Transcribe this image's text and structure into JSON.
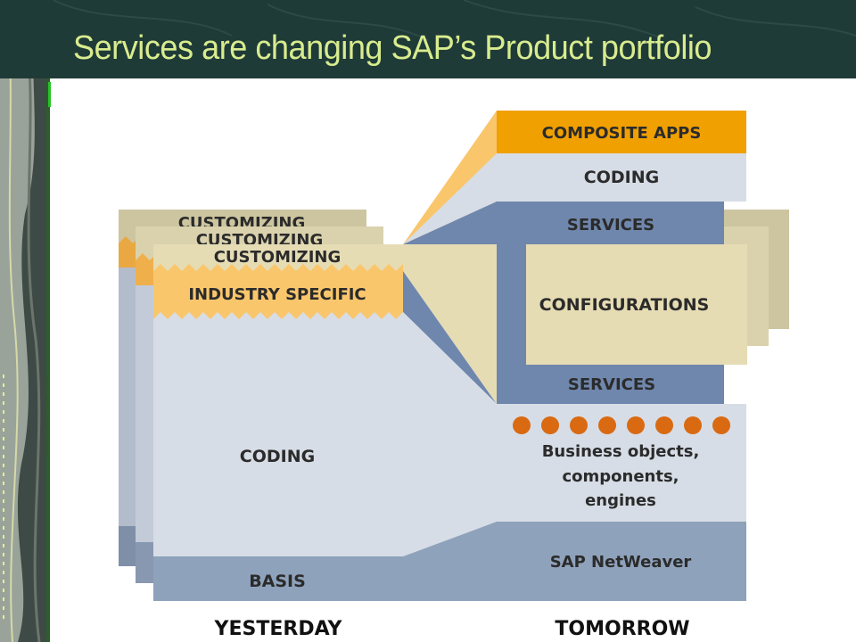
{
  "slide": {
    "title": "Services are changing SAP’s Product portfolio"
  },
  "colors": {
    "header_bg": "#1f3b38",
    "title_text": "#d9ec8e",
    "orange": "#f0a000",
    "light_orange": "#f9c66c",
    "light_blue": "#d7dde6",
    "mid_blue": "#8fa2bb",
    "services_blue": "#6f87ad",
    "tan": "#e6dcb4",
    "dot_orange": "#d96a12"
  },
  "yesterday": {
    "customizing_back2": "CUSTOMIZING",
    "customizing_back1": "CUSTOMIZING",
    "customizing": "CUSTOMIZING",
    "industry_specific": "INDUSTRY SPECIFIC",
    "coding": "CODING",
    "basis": "BASIS",
    "caption": "YESTERDAY"
  },
  "tomorrow": {
    "composite_apps": "COMPOSITE APPS",
    "coding": "CODING",
    "services_top": "SERVICES",
    "configurations": "CONFIGURATIONS",
    "services_bottom": "SERVICES",
    "business_objects_line1": "Business objects,",
    "business_objects_line2": "components,",
    "business_objects_line3": "engines",
    "netweaver": "SAP NetWeaver",
    "caption": "TOMORROW"
  }
}
